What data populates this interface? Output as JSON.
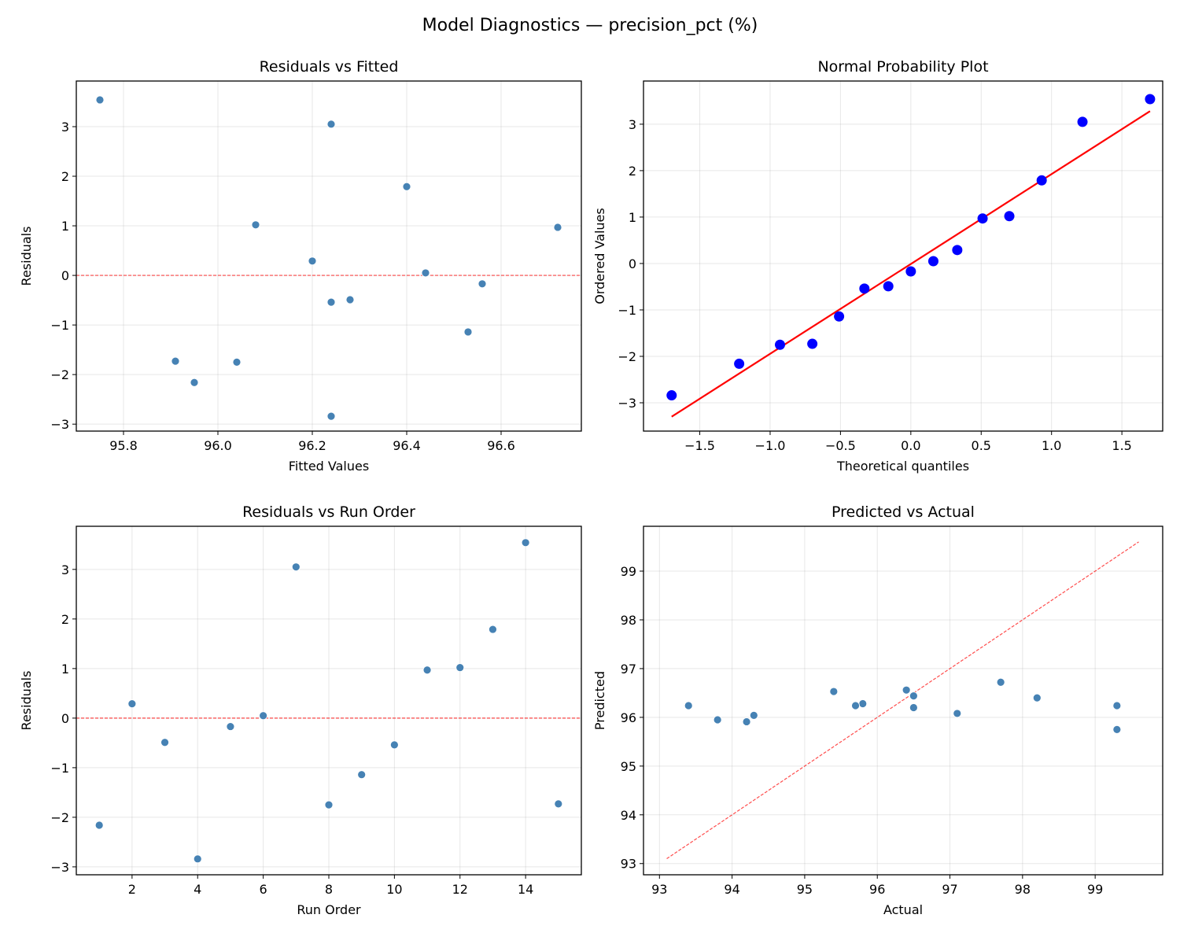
{
  "suptitle": "Model Diagnostics — precision_pct (%)",
  "chart_data": [
    {
      "type": "scatter",
      "title": "Residuals vs Fitted",
      "xlabel": "Fitted Values",
      "ylabel": "Residuals",
      "xlim": [
        95.7,
        96.77
      ],
      "ylim": [
        -3.14,
        3.92
      ],
      "xticks": [
        95.8,
        96.0,
        96.2,
        96.4,
        96.6
      ],
      "xtick_labels": [
        "95.8",
        "96.0",
        "96.2",
        "96.4",
        "96.6"
      ],
      "yticks": [
        -3,
        -2,
        -1,
        0,
        1,
        2,
        3
      ],
      "ytick_labels": [
        "−3",
        "−2",
        "−1",
        "0",
        "1",
        "2",
        "3"
      ],
      "grid": true,
      "x": [
        95.95,
        96.2,
        96.28,
        96.24,
        96.56,
        96.44,
        96.24,
        96.04,
        96.53,
        96.24,
        96.72,
        96.08,
        96.4,
        95.75,
        95.91
      ],
      "y": [
        -2.16,
        0.29,
        -0.49,
        -2.84,
        -0.17,
        0.05,
        3.05,
        -1.75,
        -1.14,
        -0.54,
        0.97,
        1.02,
        1.79,
        3.54,
        -1.73
      ],
      "point_color": "#4682b4",
      "reference_line": {
        "style": "dashed",
        "color": "#ff0000",
        "x": [
          95.7,
          96.77
        ],
        "y": [
          0,
          0
        ]
      }
    },
    {
      "type": "scatter",
      "title": "Normal Probability Plot",
      "xlabel": "Theoretical quantiles",
      "ylabel": "Ordered Values",
      "xlim": [
        -1.9,
        1.79
      ],
      "ylim": [
        -3.61,
        3.93
      ],
      "xticks": [
        -1.5,
        -1.0,
        -0.5,
        0.0,
        0.5,
        1.0,
        1.5
      ],
      "xtick_labels": [
        "−1.5",
        "−1.0",
        "−0.5",
        "0.0",
        "0.5",
        "1.0",
        "1.5"
      ],
      "yticks": [
        -3,
        -2,
        -1,
        0,
        1,
        2,
        3
      ],
      "ytick_labels": [
        "−3",
        "−2",
        "−1",
        "0",
        "1",
        "2",
        "3"
      ],
      "grid": true,
      "x": [
        -1.7,
        -1.22,
        -0.93,
        -0.7,
        -0.51,
        -0.33,
        -0.16,
        0.0,
        0.16,
        0.33,
        0.51,
        0.7,
        0.93,
        1.22,
        1.7
      ],
      "y": [
        -2.84,
        -2.16,
        -1.75,
        -1.73,
        -1.14,
        -0.54,
        -0.49,
        -0.17,
        0.05,
        0.29,
        0.97,
        1.02,
        1.79,
        3.05,
        3.54
      ],
      "point_color": "#0000ff",
      "reference_line": {
        "style": "solid",
        "color": "#ff0000",
        "x": [
          -1.7,
          1.7
        ],
        "y": [
          -3.3,
          3.28
        ]
      }
    },
    {
      "type": "scatter",
      "title": "Residuals vs Run Order",
      "xlabel": "Run Order",
      "ylabel": "Residuals",
      "xlim": [
        0.3,
        15.7
      ],
      "ylim": [
        -3.16,
        3.87
      ],
      "xticks": [
        2,
        4,
        6,
        8,
        10,
        12,
        14
      ],
      "xtick_labels": [
        "2",
        "4",
        "6",
        "8",
        "10",
        "12",
        "14"
      ],
      "yticks": [
        -3,
        -2,
        -1,
        0,
        1,
        2,
        3
      ],
      "ytick_labels": [
        "−3",
        "−2",
        "−1",
        "0",
        "1",
        "2",
        "3"
      ],
      "grid": true,
      "x": [
        1,
        2,
        3,
        4,
        5,
        6,
        7,
        8,
        9,
        10,
        11,
        12,
        13,
        14,
        15
      ],
      "y": [
        -2.16,
        0.29,
        -0.49,
        -2.84,
        -0.17,
        0.05,
        3.05,
        -1.75,
        -1.14,
        -0.54,
        0.97,
        1.02,
        1.79,
        3.54,
        -1.73
      ],
      "point_color": "#4682b4",
      "reference_line": {
        "style": "dashed",
        "color": "#ff0000",
        "x": [
          0.3,
          15.7
        ],
        "y": [
          0,
          0
        ]
      }
    },
    {
      "type": "scatter",
      "title": "Predicted vs Actual",
      "xlabel": "Actual",
      "ylabel": "Predicted",
      "xlim": [
        92.78,
        99.93
      ],
      "ylim": [
        92.77,
        99.92
      ],
      "xticks": [
        93,
        94,
        95,
        96,
        97,
        98,
        99
      ],
      "xtick_labels": [
        "93",
        "94",
        "95",
        "96",
        "97",
        "98",
        "99"
      ],
      "yticks": [
        93,
        94,
        95,
        96,
        97,
        98,
        99
      ],
      "ytick_labels": [
        "93",
        "94",
        "95",
        "96",
        "97",
        "98",
        "99"
      ],
      "grid": true,
      "x": [
        93.8,
        96.5,
        95.8,
        93.4,
        96.4,
        96.5,
        99.3,
        94.3,
        95.4,
        95.7,
        97.7,
        97.1,
        98.2,
        99.3,
        94.2
      ],
      "y": [
        95.95,
        96.2,
        96.28,
        96.24,
        96.56,
        96.44,
        96.24,
        96.04,
        96.53,
        96.24,
        96.72,
        96.08,
        96.4,
        95.75,
        95.91
      ],
      "point_color": "#4682b4",
      "reference_line": {
        "style": "dashed",
        "color": "#ff0000",
        "x": [
          93.1,
          99.6
        ],
        "y": [
          93.1,
          99.6
        ]
      }
    }
  ]
}
